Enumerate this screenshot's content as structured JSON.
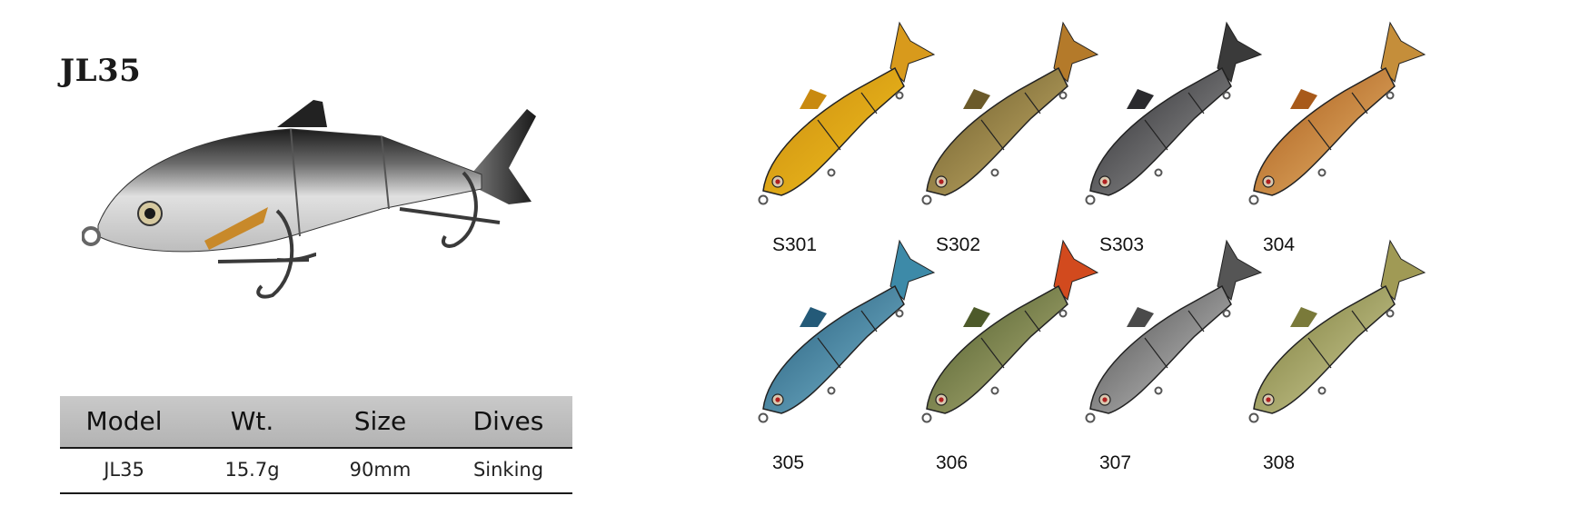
{
  "product": {
    "model_title": "JL35"
  },
  "spec_table": {
    "headers": [
      "Model",
      "Wt.",
      "Size",
      "Dives"
    ],
    "row": [
      "JL35",
      "15.7g",
      "90mm",
      "Sinking"
    ]
  },
  "variants": [
    {
      "code": "S301",
      "colors": {
        "back": "#c98a10",
        "belly": "#f2c21e",
        "tail": "#d89a1c"
      }
    },
    {
      "code": "S302",
      "colors": {
        "back": "#6b5a2a",
        "belly": "#c7b06a",
        "tail": "#b47a2a"
      }
    },
    {
      "code": "S303",
      "colors": {
        "back": "#2a2a2e",
        "belly": "#9a9a9a",
        "tail": "#3a3a3a"
      }
    },
    {
      "code": "304",
      "colors": {
        "back": "#a85a1a",
        "belly": "#e7b56c",
        "tail": "#c58e3a"
      }
    },
    {
      "code": "305",
      "colors": {
        "back": "#245a78",
        "belly": "#79b8d0",
        "tail": "#3d8aa8"
      }
    },
    {
      "code": "306",
      "colors": {
        "back": "#4d5a2a",
        "belly": "#b2b37a",
        "tail": "#d24a1e"
      }
    },
    {
      "code": "307",
      "colors": {
        "back": "#4a4a4a",
        "belly": "#c9c9c9",
        "tail": "#555555"
      }
    },
    {
      "code": "308",
      "colors": {
        "back": "#7a7a3a",
        "belly": "#d0cf98",
        "tail": "#a09a55"
      }
    }
  ]
}
